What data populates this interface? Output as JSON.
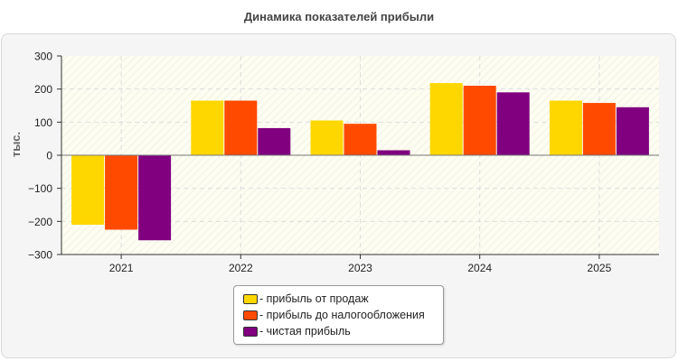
{
  "chart_data": {
    "type": "bar",
    "title": "Динамика показателей прибыли",
    "ylabel": "тыс.",
    "xlabel": "",
    "categories": [
      "2021",
      "2022",
      "2023",
      "2024",
      "2025"
    ],
    "series": [
      {
        "name": "прибыль от продаж",
        "color": "#ffd700",
        "values": [
          -210,
          165,
          105,
          218,
          165
        ]
      },
      {
        "name": "прибыль до налогообложения",
        "color": "#ff4a00",
        "values": [
          -225,
          165,
          95,
          210,
          158
        ]
      },
      {
        "name": "чистая прибыль",
        "color": "#800080",
        "values": [
          -257,
          82,
          15,
          190,
          145
        ]
      }
    ],
    "ylim": [
      -300,
      300
    ],
    "yticks": [
      -300,
      -200,
      -100,
      0,
      100,
      200,
      300
    ],
    "grid": true,
    "legend_position": "bottom"
  }
}
